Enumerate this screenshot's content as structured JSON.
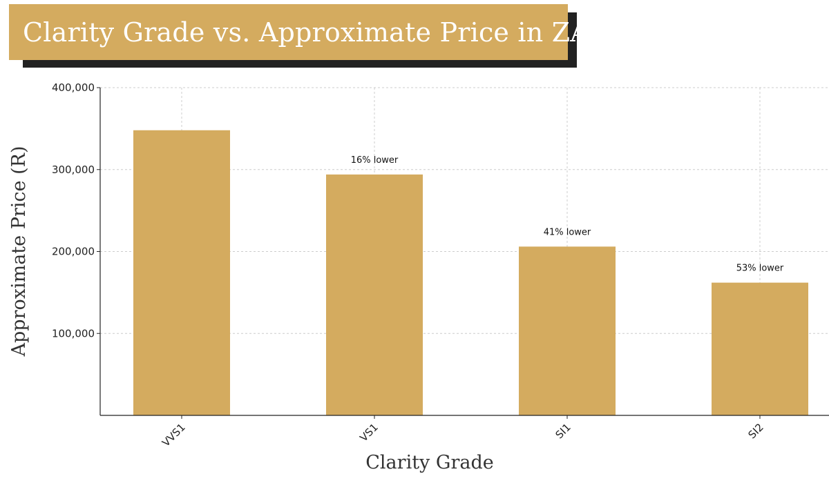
{
  "chart_data": {
    "type": "bar",
    "title": "Clarity Grade vs. Approximate Price in ZAR",
    "xlabel": "Clarity Grade",
    "ylabel": "Approximate Price (R)",
    "categories": [
      "VVS1",
      "VS1",
      "SI1",
      "SI2"
    ],
    "values": [
      348000,
      294000,
      206000,
      162000
    ],
    "annotations": [
      "",
      "16% lower",
      "41% lower",
      "53% lower"
    ],
    "ylim": [
      0,
      400000
    ],
    "yticks": [
      100000,
      200000,
      300000,
      400000
    ],
    "ytick_labels": [
      "100,000",
      "200,000",
      "300,000",
      "400,000"
    ],
    "grid": true,
    "colors": {
      "bar": "#d4ab5f",
      "title_bg": "#d4ab5f",
      "title_shadow": "#222222",
      "grid": "#cccccc",
      "axis": "#222222"
    }
  }
}
